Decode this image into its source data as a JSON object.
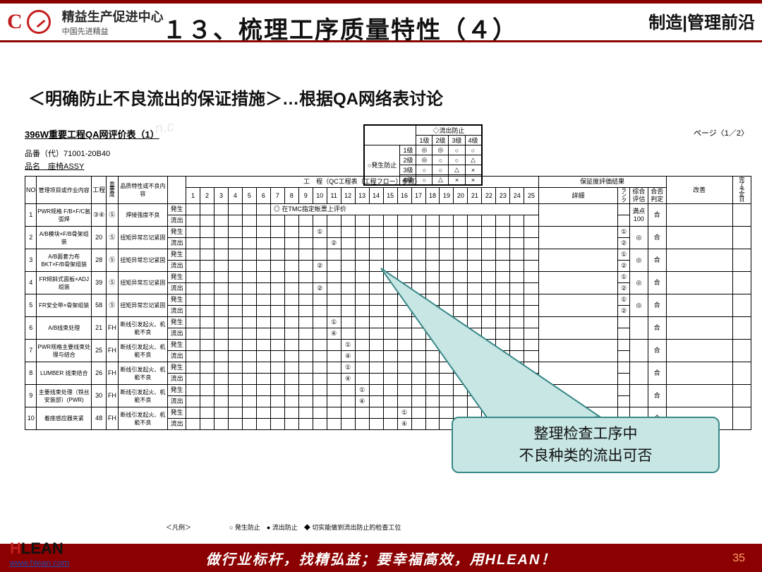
{
  "header": {
    "logo_main": "精益生产促进中心",
    "logo_sub": "中国先进精益",
    "title": "１３、梳理工序质量特性（４）",
    "right_label": "制造|管理前沿"
  },
  "subtitle": "＜明确防止不良流出的保证措施＞…根据QA网络表讨论",
  "sheet": {
    "title": "396W重要工程QA网评价表（1）",
    "part_no_label": "品番（代）71001-20B40",
    "part_name_label": "品名　座椅ASSY",
    "page": "ページ〈1／2〉",
    "process_header": "工　程（QC工程表（工程フロー）参照）",
    "assurance_header": "保証度評価結果",
    "legend_title": "◇流出防止",
    "legend_cols": [
      "1级",
      "2级",
      "3级",
      "4级"
    ],
    "legend_rows": [
      "1级",
      "2级",
      "3级",
      "4级"
    ],
    "legend_side": "○発生防止",
    "legend_marks": [
      [
        "◎",
        "◎",
        "○",
        "○"
      ],
      [
        "◎",
        "○",
        "○",
        "△"
      ],
      [
        "○",
        "○",
        "△",
        "×"
      ],
      [
        "○",
        "△",
        "×",
        "×"
      ]
    ],
    "columns": {
      "no": "NO",
      "item": "管理项目或作业内容",
      "process": "工程",
      "importance": "重要度",
      "char": "品质特性或不良内容",
      "emit_happen": "発生",
      "emit_out": "流出",
      "detail": "詳細",
      "rank": "ランク",
      "eval": "综合评估",
      "judge": "合否判定",
      "improve": "改善",
      "done": "完了予定日"
    },
    "steps": [
      "1",
      "2",
      "3",
      "4",
      "5",
      "6",
      "7",
      "8",
      "9",
      "10",
      "11",
      "12",
      "13",
      "14",
      "15",
      "16",
      "17",
      "18",
      "19",
      "20",
      "21",
      "22",
      "23",
      "24",
      "25"
    ],
    "tmc_note": "◎ 在TMC指定帐票上评价",
    "rows": [
      {
        "no": "1",
        "item": "PWR规格 F/B×F/C氩弧焊",
        "proc": "③④",
        "imp": "Ⓢ",
        "char": "焊接强度不良",
        "happen_mark": "",
        "out_mark": "",
        "detail": "",
        "rank": "",
        "eval": "満点100",
        "judge": "合"
      },
      {
        "no": "2",
        "item": "A/B模块×F/B骨架组装",
        "proc": "20",
        "imp": "Ⓢ",
        "char": "扭矩异常忘记紧固",
        "happen_mark": "① at10",
        "out_mark": "② at11",
        "detail": "",
        "rank": "①②",
        "eval": "◎",
        "judge": "合"
      },
      {
        "no": "3",
        "item": "A/B面套力布BKT×F/B骨架组装",
        "proc": "28",
        "imp": "Ⓢ",
        "char": "扭矩异常忘记紧固",
        "happen_mark": "",
        "out_mark": "② at10",
        "detail": "",
        "rank": "①②",
        "eval": "◎",
        "judge": "合"
      },
      {
        "no": "4",
        "item": "FR倾斜式面板×ADJ组装",
        "proc": "39",
        "imp": "Ⓢ",
        "char": "扭矩异常忘记紧固",
        "happen_mark": "",
        "out_mark": "② at10",
        "detail": "",
        "rank": "①②",
        "eval": "◎",
        "judge": "合"
      },
      {
        "no": "5",
        "item": "FR安全带×骨架组装",
        "proc": "58",
        "imp": "Ⓢ",
        "char": "扭矩异常忘记紧固",
        "happen_mark": "",
        "out_mark": "",
        "detail": "",
        "rank": "①②",
        "eval": "◎",
        "judge": "合"
      },
      {
        "no": "6",
        "item": "A/B线束处理",
        "proc": "21",
        "imp": "FH",
        "char": "断线引发起火、机能不良",
        "happen_mark": "① at11",
        "out_mark": "④ at11",
        "detail": "",
        "rank": "",
        "eval": "",
        "judge": "合"
      },
      {
        "no": "7",
        "item": "PWR规格主要线束处理与结合",
        "proc": "25",
        "imp": "FH",
        "char": "断线引发起火、机能不良",
        "happen_mark": "① at12",
        "out_mark": "④ at12",
        "detail": "",
        "rank": "",
        "eval": "",
        "judge": "合"
      },
      {
        "no": "8",
        "item": "LUMBER 线束结合",
        "proc": "26",
        "imp": "FH",
        "char": "断线引发起火、机能不良",
        "happen_mark": "① at12",
        "out_mark": "④ at12",
        "detail": "",
        "rank": "",
        "eval": "",
        "judge": "合"
      },
      {
        "no": "9",
        "item": "主要线束处理（铁丝安装部）(PWR)",
        "proc": "30",
        "imp": "FH",
        "char": "断线引发起火、机能不良",
        "happen_mark": "① at13",
        "out_mark": "④ at13",
        "detail": "",
        "rank": "",
        "eval": "",
        "judge": "合"
      },
      {
        "no": "10",
        "item": "着座感应器夹紧",
        "proc": "48",
        "imp": "FH",
        "char": "断线引发起火、机能不良",
        "happen_mark": "① at16",
        "out_mark": "④ at16",
        "detail": "",
        "rank": "",
        "eval": "",
        "judge": "合"
      }
    ],
    "legend_bottom": "＜凡例＞　　　　　　○ 発生防止　● 流出防止　◆ 切实能做到流出防止的检查工位"
  },
  "callout": {
    "line1": "整理检查工序中",
    "line2": "不良种类的流出可否"
  },
  "footer": {
    "slogan": "做行业标杆，找精弘益；要幸福高效，用HLEAN！",
    "url": "www.hlean.com",
    "slide": "35"
  },
  "style": {
    "brand_red": "#8b0000",
    "accent_red": "#c41e1e",
    "callout_bg": "#c7e6e4",
    "callout_border": "#3a8888"
  }
}
